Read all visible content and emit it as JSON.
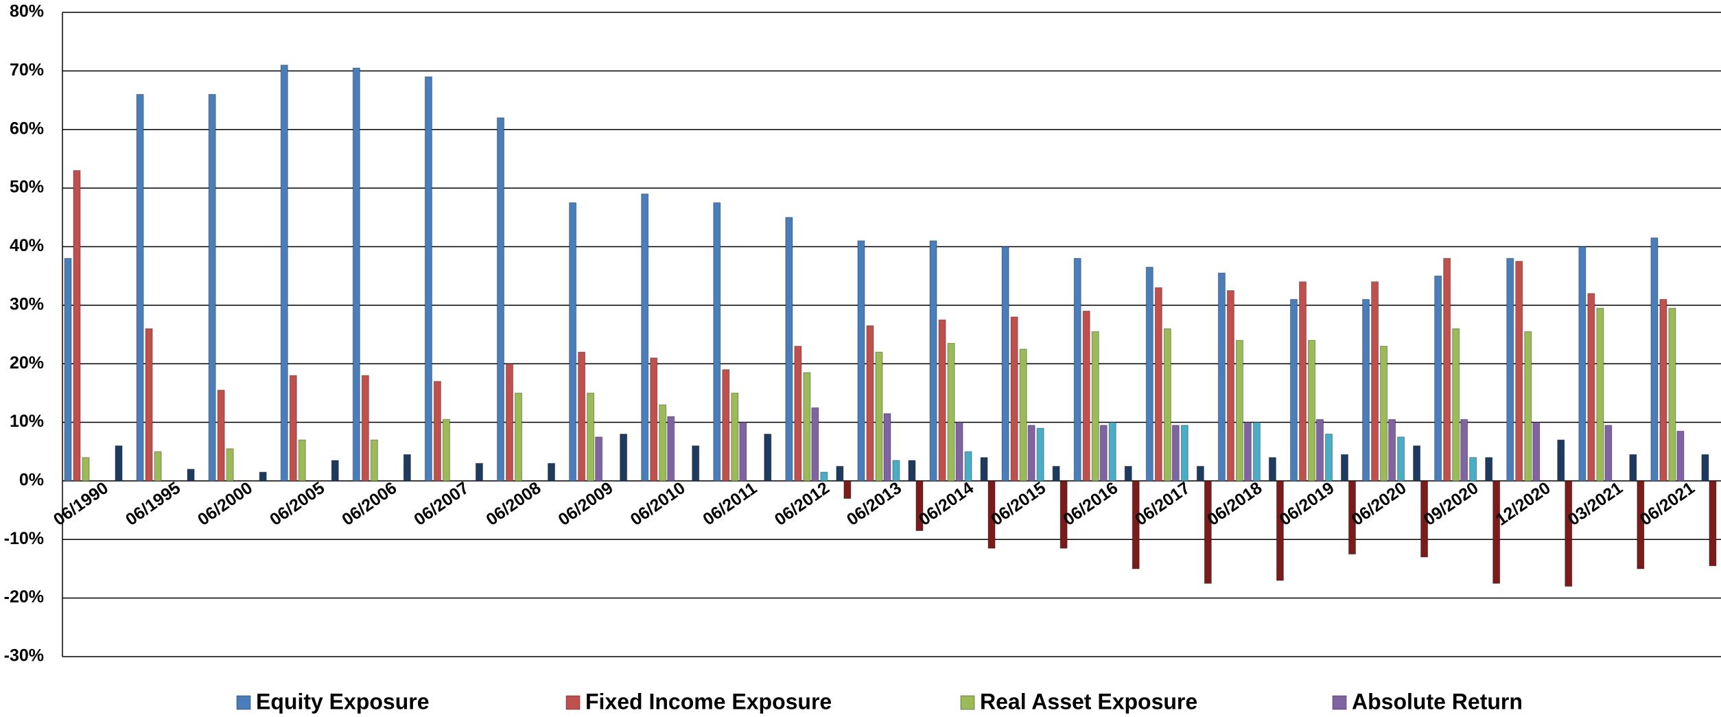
{
  "chart_data": {
    "type": "bar",
    "categories": [
      "06/1990",
      "06/1995",
      "06/2000",
      "06/2005",
      "06/2006",
      "06/2007",
      "06/2008",
      "06/2009",
      "06/2010",
      "06/2011",
      "06/2012",
      "06/2013",
      "06/2014",
      "06/2015",
      "06/2016",
      "06/2017",
      "06/2018",
      "06/2019",
      "06/2020",
      "09/2020",
      "12/2020",
      "03/2021",
      "06/2021"
    ],
    "series": [
      {
        "name": "Equity Exposure",
        "color": "#4a7ebb",
        "values": [
          38,
          66,
          66,
          71,
          70.5,
          69,
          62,
          47.5,
          49,
          47.5,
          45,
          41,
          41,
          40,
          38,
          36.5,
          35.5,
          31,
          31,
          35,
          38,
          40,
          41.5
        ]
      },
      {
        "name": "Fixed Income Exposure",
        "color": "#c0504d",
        "values": [
          53,
          26,
          15.5,
          18,
          18,
          17,
          20,
          22,
          21,
          19,
          23,
          26.5,
          27.5,
          28,
          29,
          33,
          32.5,
          34,
          34,
          38,
          37.5,
          32,
          31
        ]
      },
      {
        "name": "Real Asset Exposure",
        "color": "#9bbb59",
        "values": [
          4,
          5,
          5.5,
          7,
          7,
          10.5,
          15,
          15,
          13,
          15,
          18.5,
          22,
          23.5,
          22.5,
          25.5,
          26,
          24,
          24,
          23,
          26,
          25.5,
          29.5,
          29.5
        ]
      },
      {
        "name": "Absolute Return",
        "color": "#8064a2",
        "values": [
          null,
          null,
          null,
          null,
          null,
          null,
          null,
          7.5,
          11,
          10,
          12.5,
          11.5,
          10,
          9.5,
          9.5,
          9.5,
          10,
          10.5,
          10.5,
          10.5,
          10,
          9.5,
          8.5
        ]
      },
      {
        "color": "#4bacc6",
        "values": [
          null,
          null,
          null,
          null,
          null,
          null,
          null,
          null,
          null,
          null,
          1.5,
          3.5,
          5,
          9,
          10,
          9.5,
          10,
          8,
          7.5,
          4,
          null,
          null,
          null
        ]
      },
      {
        "color": "#1f3a5f",
        "values": [
          6,
          2,
          1.5,
          3.5,
          4.5,
          3,
          3,
          8,
          6,
          8,
          2.5,
          3.5,
          4,
          2.5,
          2.5,
          2.5,
          4,
          4.5,
          6,
          4,
          7,
          4.5,
          4.5
        ]
      },
      {
        "color": "#7b1c1c",
        "values": [
          null,
          null,
          null,
          null,
          null,
          null,
          null,
          null,
          null,
          null,
          -3,
          -8.5,
          -11.5,
          -11.5,
          -15,
          -17.5,
          -17,
          -12.5,
          -13,
          -17.5,
          -18,
          -15,
          -14.5
        ]
      }
    ],
    "ylim": [
      -30,
      80
    ],
    "yticks": [
      {
        "value": -30,
        "label": "-30%"
      },
      {
        "value": -20,
        "label": "-20%"
      },
      {
        "value": -10,
        "label": "-10%"
      },
      {
        "value": 0,
        "label": "0%"
      },
      {
        "value": 10,
        "label": "10%"
      },
      {
        "value": 20,
        "label": "20%"
      },
      {
        "value": 30,
        "label": "30%"
      },
      {
        "value": 40,
        "label": "40%"
      },
      {
        "value": 50,
        "label": "50%"
      },
      {
        "value": 60,
        "label": "60%"
      },
      {
        "value": 70,
        "label": "70%"
      },
      {
        "value": 80,
        "label": "80%"
      }
    ],
    "grid": true
  }
}
